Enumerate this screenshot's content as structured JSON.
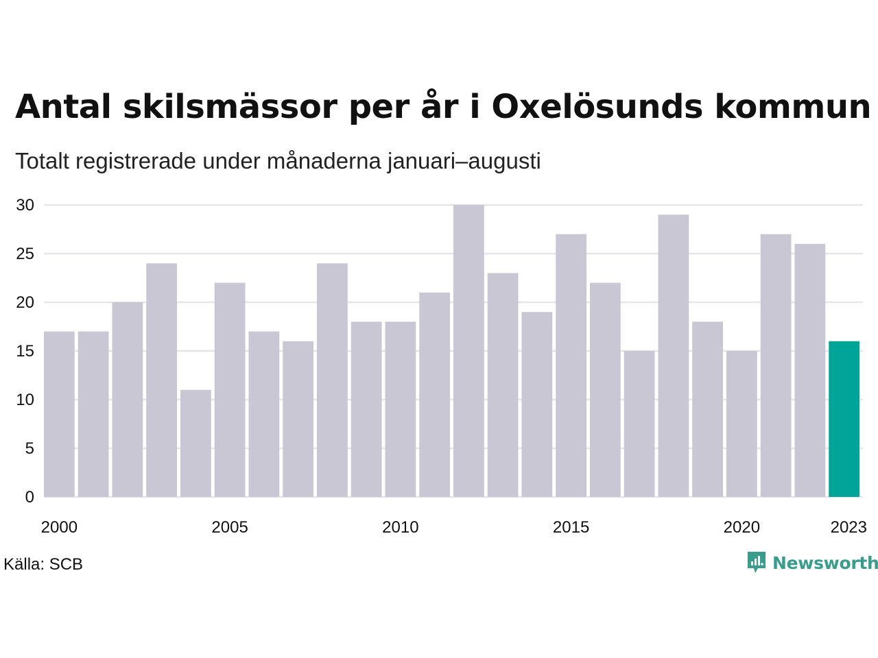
{
  "title": "Antal skilsmässor per år i Oxelösunds kommun",
  "subtitle": "Totalt registrerade under månaderna januari–augusti",
  "source": "Källa: SCB",
  "brand": {
    "name": "Newsworthy",
    "icon": "newsworthy-logo-icon",
    "color": "#3a9c8c"
  },
  "colors": {
    "bar": "#c8c7d3",
    "highlight": "#00a499",
    "grid": "#e6e6ea"
  },
  "chart_data": {
    "type": "bar",
    "title": "Antal skilsmässor per år i Oxelösunds kommun",
    "subtitle": "Totalt registrerade under månaderna januari–augusti",
    "categories": [
      "2000",
      "2001",
      "2002",
      "2003",
      "2004",
      "2005",
      "2006",
      "2007",
      "2008",
      "2009",
      "2010",
      "2011",
      "2012",
      "2013",
      "2014",
      "2015",
      "2016",
      "2017",
      "2018",
      "2019",
      "2020",
      "2021",
      "2022",
      "2023"
    ],
    "values": [
      17,
      17,
      20,
      24,
      11,
      22,
      17,
      16,
      24,
      18,
      18,
      21,
      30,
      23,
      19,
      27,
      22,
      15,
      29,
      18,
      15,
      27,
      26,
      16
    ],
    "highlight": "2023",
    "x_tick_labels": [
      "2000",
      "2005",
      "2010",
      "2015",
      "2020",
      "2023"
    ],
    "y_ticks": [
      0,
      5,
      10,
      15,
      20,
      25,
      30
    ],
    "ylim": [
      0,
      30
    ],
    "xlabel": "",
    "ylabel": "",
    "grid": true
  }
}
